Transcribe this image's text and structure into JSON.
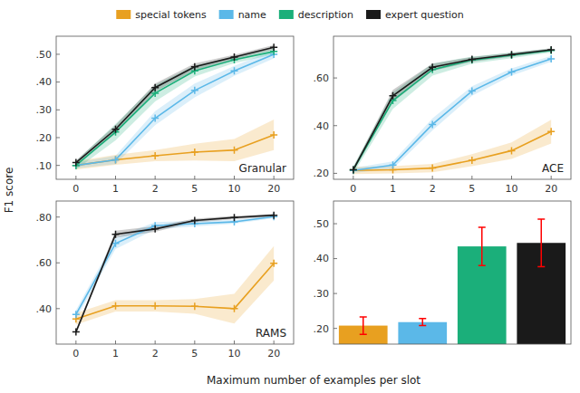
{
  "chart_data": [
    {
      "type": "line",
      "annotation": "Granular",
      "xlabel": "Maximum number of examples per slot",
      "ylabel": "F1 score",
      "legend": "top",
      "categories": [
        "0",
        "1",
        "2",
        "5",
        "10",
        "20"
      ],
      "series": [
        {
          "name": "special tokens",
          "color": "#E8A020",
          "values": [
            0.1,
            0.12,
            0.135,
            0.148,
            0.155,
            0.21
          ],
          "errors": [
            0.015,
            0.018,
            0.02,
            0.03,
            0.04,
            0.055
          ]
        },
        {
          "name": "name",
          "color": "#5BB8E8",
          "values": [
            0.1,
            0.12,
            0.27,
            0.37,
            0.44,
            0.5
          ],
          "errors": [
            0.01,
            0.015,
            0.025,
            0.025,
            0.018,
            0.015
          ]
        },
        {
          "name": "description",
          "color": "#1BAF7A",
          "values": [
            0.1,
            0.22,
            0.36,
            0.44,
            0.48,
            0.51
          ],
          "errors": [
            0.015,
            0.03,
            0.03,
            0.02,
            0.012,
            0.01
          ]
        },
        {
          "name": "expert question",
          "color": "#1A1A1A",
          "values": [
            0.11,
            0.23,
            0.38,
            0.455,
            0.49,
            0.525
          ],
          "errors": [
            0.008,
            0.015,
            0.015,
            0.012,
            0.008,
            0.008
          ]
        }
      ],
      "ylim": [
        0.05,
        0.565
      ],
      "yticks": [
        {
          "value": 0.1,
          "label": ".10"
        },
        {
          "value": 0.2,
          "label": ".20"
        },
        {
          "value": 0.3,
          "label": ".30"
        },
        {
          "value": 0.4,
          "label": ".40"
        },
        {
          "value": 0.5,
          "label": ".50"
        }
      ]
    },
    {
      "type": "line",
      "annotation": "ACE",
      "categories": [
        "0",
        "1",
        "2",
        "5",
        "10",
        "20"
      ],
      "series": [
        {
          "name": "special tokens",
          "color": "#E8A020",
          "values": [
            0.212,
            0.215,
            0.222,
            0.255,
            0.295,
            0.375
          ],
          "errors": [
            0.015,
            0.015,
            0.018,
            0.025,
            0.035,
            0.05
          ]
        },
        {
          "name": "name",
          "color": "#5BB8E8",
          "values": [
            0.212,
            0.235,
            0.405,
            0.545,
            0.625,
            0.68
          ],
          "errors": [
            0.01,
            0.015,
            0.025,
            0.02,
            0.015,
            0.012
          ]
        },
        {
          "name": "description",
          "color": "#1BAF7A",
          "values": [
            0.215,
            0.505,
            0.635,
            0.675,
            0.695,
            0.715
          ],
          "errors": [
            0.015,
            0.035,
            0.025,
            0.015,
            0.012,
            0.008
          ]
        },
        {
          "name": "expert question",
          "color": "#1A1A1A",
          "values": [
            0.215,
            0.525,
            0.645,
            0.678,
            0.698,
            0.718
          ],
          "errors": [
            0.008,
            0.025,
            0.015,
            0.01,
            0.008,
            0.007
          ]
        }
      ],
      "ylim": [
        0.175,
        0.775
      ],
      "yticks": [
        {
          "value": 0.2,
          "label": ".20"
        },
        {
          "value": 0.4,
          "label": ".40"
        },
        {
          "value": 0.6,
          "label": ".60"
        }
      ]
    },
    {
      "type": "line",
      "annotation": "RAMS",
      "categories": [
        "0",
        "1",
        "2",
        "5",
        "10",
        "20"
      ],
      "series": [
        {
          "name": "special tokens",
          "color": "#E8A020",
          "values": [
            0.355,
            0.412,
            0.412,
            0.41,
            0.4,
            0.598
          ],
          "errors": [
            0.025,
            0.025,
            0.025,
            0.032,
            0.065,
            0.075
          ]
        },
        {
          "name": "name",
          "color": "#5BB8E8",
          "values": [
            0.375,
            0.685,
            0.762,
            0.771,
            0.779,
            0.802
          ],
          "errors": [
            0.018,
            0.025,
            0.016,
            0.012,
            0.008,
            0.007
          ]
        },
        {
          "name": "expert question",
          "color": "#1A1A1A",
          "values": [
            0.298,
            0.725,
            0.748,
            0.785,
            0.798,
            0.808
          ],
          "errors": [
            0.008,
            0.015,
            0.012,
            0.008,
            0.007,
            0.006
          ]
        }
      ],
      "ylim": [
        0.245,
        0.87
      ],
      "yticks": [
        {
          "value": 0.4,
          "label": ".40"
        },
        {
          "value": 0.6,
          "label": ".60"
        },
        {
          "value": 0.8,
          "label": ".80"
        }
      ]
    },
    {
      "type": "bar",
      "categories": [
        null,
        null,
        null,
        null
      ],
      "values": [
        0.208,
        0.218,
        0.435,
        0.445
      ],
      "errors": [
        0.025,
        0.01,
        0.055,
        0.068
      ],
      "colors": [
        "#E8A020",
        "#5BB8E8",
        "#1BAF7A",
        "#1A1A1A"
      ],
      "ylim": [
        0.155,
        0.565
      ],
      "yticks": [
        {
          "value": 0.2,
          "label": ".20"
        },
        {
          "value": 0.3,
          "label": ".30"
        },
        {
          "value": 0.4,
          "label": ".40"
        },
        {
          "value": 0.5,
          "label": ".50"
        }
      ]
    }
  ]
}
